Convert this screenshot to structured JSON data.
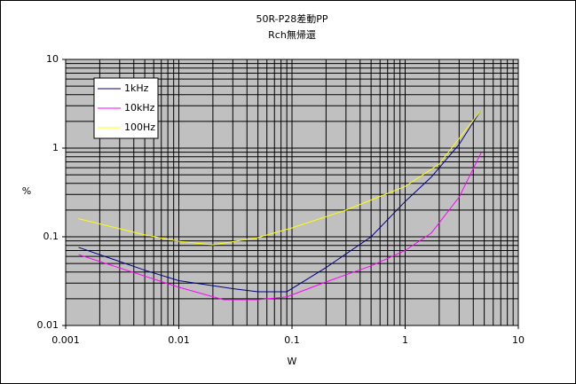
{
  "chart_data": {
    "type": "line",
    "title": "50R-P28差動PP",
    "subtitle": "Rch無帰還",
    "x_label": "W",
    "y_label": "%",
    "xscale": "log",
    "yscale": "log",
    "xlim": [
      0.001,
      10
    ],
    "ylim": [
      0.01,
      10
    ],
    "xticks": [
      0.001,
      0.01,
      0.1,
      1,
      10
    ],
    "yticks": [
      0.01,
      0.1,
      1,
      10
    ],
    "grid": true,
    "legend": "upper left",
    "series": [
      {
        "name": "1kHz",
        "color": "#000080",
        "x": [
          0.0013,
          0.005,
          0.01,
          0.03,
          0.05,
          0.09,
          0.2,
          0.5,
          1,
          1.7,
          3,
          4.6
        ],
        "values": [
          0.076,
          0.042,
          0.032,
          0.026,
          0.024,
          0.024,
          0.045,
          0.1,
          0.25,
          0.47,
          1.1,
          2.6
        ]
      },
      {
        "name": "10kHz",
        "color": "#ff00ff",
        "x": [
          0.0013,
          0.01,
          0.025,
          0.05,
          0.09,
          0.2,
          0.5,
          1,
          1.7,
          3,
          4.7
        ],
        "values": [
          0.063,
          0.027,
          0.0195,
          0.0195,
          0.021,
          0.031,
          0.047,
          0.07,
          0.11,
          0.28,
          0.89
        ]
      },
      {
        "name": "100Hz",
        "color": "#ffff00",
        "x": [
          0.0013,
          0.005,
          0.01,
          0.02,
          0.05,
          0.1,
          0.3,
          1,
          2,
          4.6
        ],
        "values": [
          0.16,
          0.105,
          0.089,
          0.081,
          0.098,
          0.126,
          0.2,
          0.37,
          0.66,
          2.6
        ]
      }
    ]
  }
}
